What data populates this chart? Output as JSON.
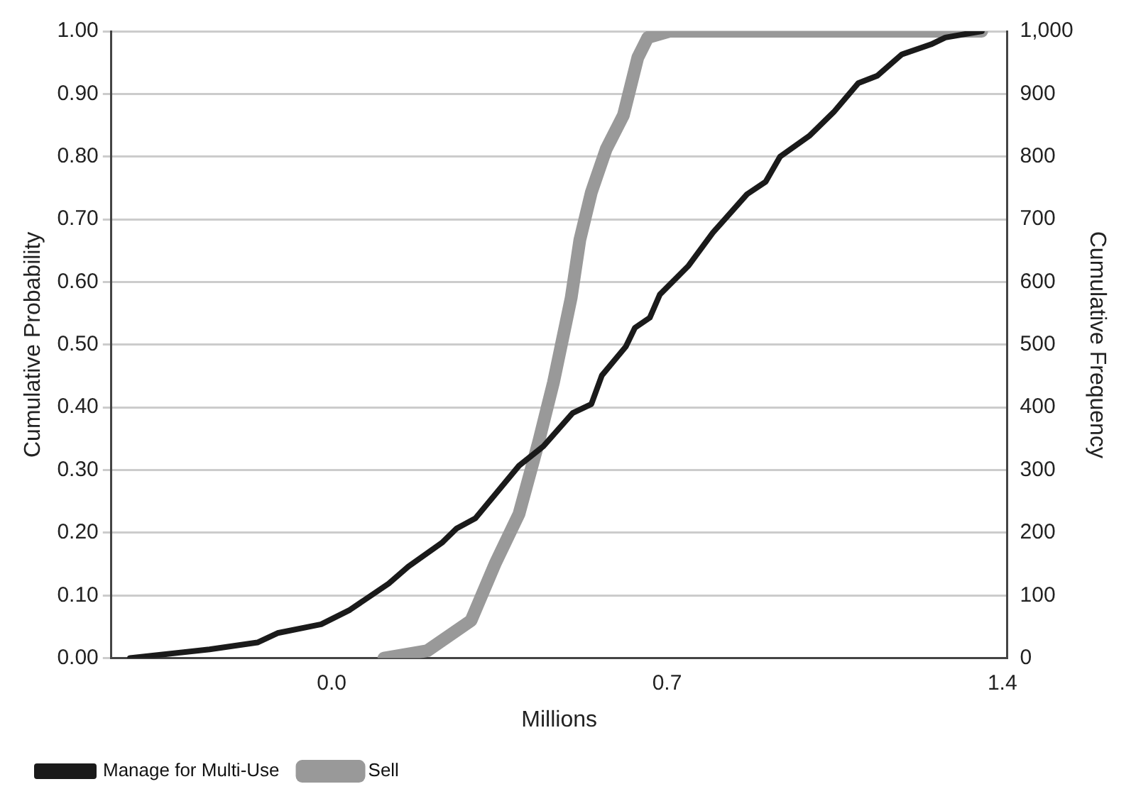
{
  "chart_data": {
    "type": "line",
    "xlabel": "Millions",
    "ylabel": "Cumulative Probability",
    "y2label": "Cumulative Frequency",
    "xlim": [
      -0.46,
      1.41
    ],
    "xticks": [
      {
        "value": 0,
        "label": "0.0"
      },
      {
        "value": 0.7,
        "label": "0.7"
      },
      {
        "value": 1.4,
        "label": "1.4"
      }
    ],
    "ylim": [
      0,
      1
    ],
    "yticks": [
      {
        "value": 0,
        "label": "0.00"
      },
      {
        "value": 0.1,
        "label": "0.10"
      },
      {
        "value": 0.2,
        "label": "0.20"
      },
      {
        "value": 0.3,
        "label": "0.30"
      },
      {
        "value": 0.4,
        "label": "0.40"
      },
      {
        "value": 0.5,
        "label": "0.50"
      },
      {
        "value": 0.6,
        "label": "0.60"
      },
      {
        "value": 0.7,
        "label": "0.70"
      },
      {
        "value": 0.8,
        "label": "0.80"
      },
      {
        "value": 0.9,
        "label": "0.90"
      },
      {
        "value": 1,
        "label": "1.00"
      }
    ],
    "y2lim": [
      0,
      1000
    ],
    "y2ticks": [
      0,
      100,
      200,
      300,
      400,
      500,
      600,
      700,
      800,
      900,
      {
        "value": 1000,
        "label": "1,000"
      }
    ],
    "grid": "y",
    "legend": "bottom left",
    "marker": "none",
    "line_style": "solid",
    "series": [
      {
        "name": "Manage for Multi-Use",
        "color": "#1a1a1a",
        "x": [
          -0.421,
          -0.255,
          -0.155,
          -0.113,
          -0.022,
          0.038,
          0.119,
          0.16,
          0.23,
          0.261,
          0.3,
          0.391,
          0.442,
          0.503,
          0.542,
          0.564,
          0.614,
          0.633,
          0.664,
          0.685,
          0.745,
          0.796,
          0.867,
          0.906,
          0.936,
          0.997,
          1.048,
          1.099,
          1.139,
          1.19,
          1.251,
          1.281,
          1.357
        ],
        "values": [
          0,
          0.014,
          0.025,
          0.04,
          0.054,
          0.077,
          0.119,
          0.146,
          0.184,
          0.207,
          0.223,
          0.307,
          0.338,
          0.391,
          0.405,
          0.451,
          0.497,
          0.527,
          0.543,
          0.58,
          0.626,
          0.679,
          0.74,
          0.76,
          0.8,
          0.833,
          0.871,
          0.917,
          0.929,
          0.963,
          0.979,
          0.99,
          1
        ]
      },
      {
        "name": "Sell",
        "color": "#999999",
        "axis": "y2",
        "x": [
          0.109,
          0.2,
          0.291,
          0.342,
          0.391,
          0.432,
          0.463,
          0.5,
          0.518,
          0.542,
          0.573,
          0.609,
          0.639,
          0.66,
          0.705,
          1.357
        ],
        "values": [
          0,
          12,
          60,
          152,
          230,
          345,
          440,
          575,
          667,
          743,
          812,
          866,
          958,
          990,
          1000,
          1000
        ]
      }
    ]
  }
}
